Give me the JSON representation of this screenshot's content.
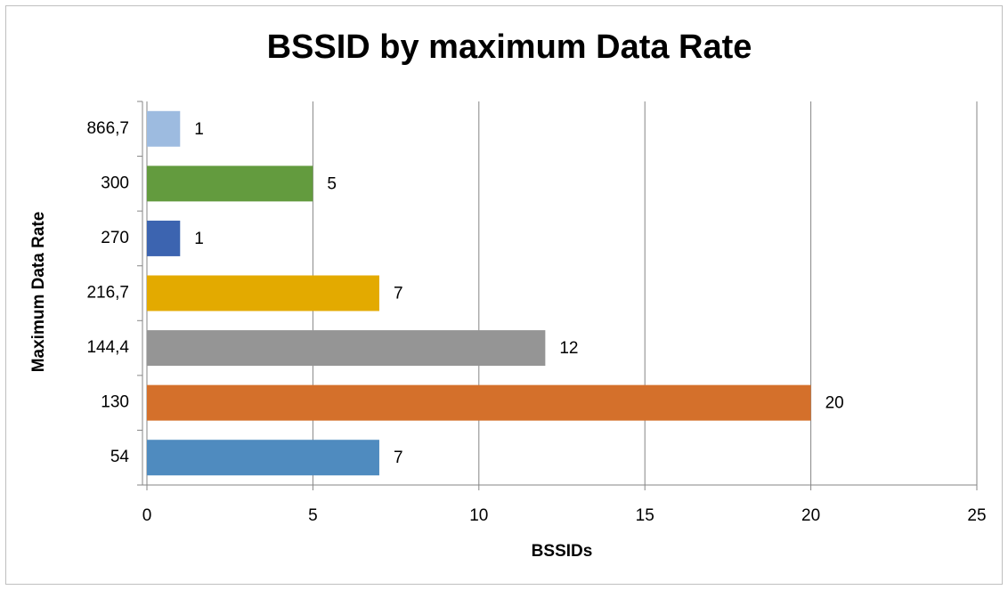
{
  "chart_data": {
    "type": "bar",
    "orientation": "horizontal",
    "title": "BSSID by maximum Data Rate",
    "x_label": "BSSIDs",
    "y_label": "Maximum Data Rate",
    "categories": [
      "54",
      "130",
      "144,4",
      "216,7",
      "270",
      "300",
      "866,7"
    ],
    "values": [
      7,
      20,
      12,
      7,
      1,
      5,
      1
    ],
    "colors": [
      "#4f8bbf",
      "#d4702b",
      "#959595",
      "#e3aa00",
      "#3c64b0",
      "#639b3e",
      "#9dbbe0"
    ],
    "xlim": [
      0,
      25
    ],
    "xticks": [
      0,
      5,
      10,
      15,
      20,
      25
    ],
    "grid": true
  }
}
